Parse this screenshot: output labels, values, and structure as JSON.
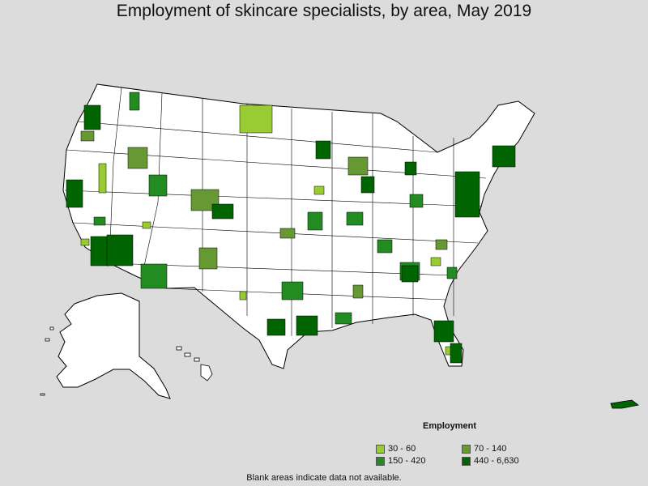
{
  "title": "Employment of skincare specialists, by area, May 2019",
  "legend": {
    "title": "Employment",
    "items": [
      {
        "label": "30 - 60",
        "color": "#99cc33"
      },
      {
        "label": "70 - 140",
        "color": "#669933"
      },
      {
        "label": "150 - 420",
        "color": "#228b22"
      },
      {
        "label": "440 - 6,630",
        "color": "#006400"
      }
    ]
  },
  "footnote": "Blank areas indicate data not available.",
  "colors": {
    "background": "#dcdcdc",
    "no_data": "#ffffff",
    "border": "#000000"
  }
}
